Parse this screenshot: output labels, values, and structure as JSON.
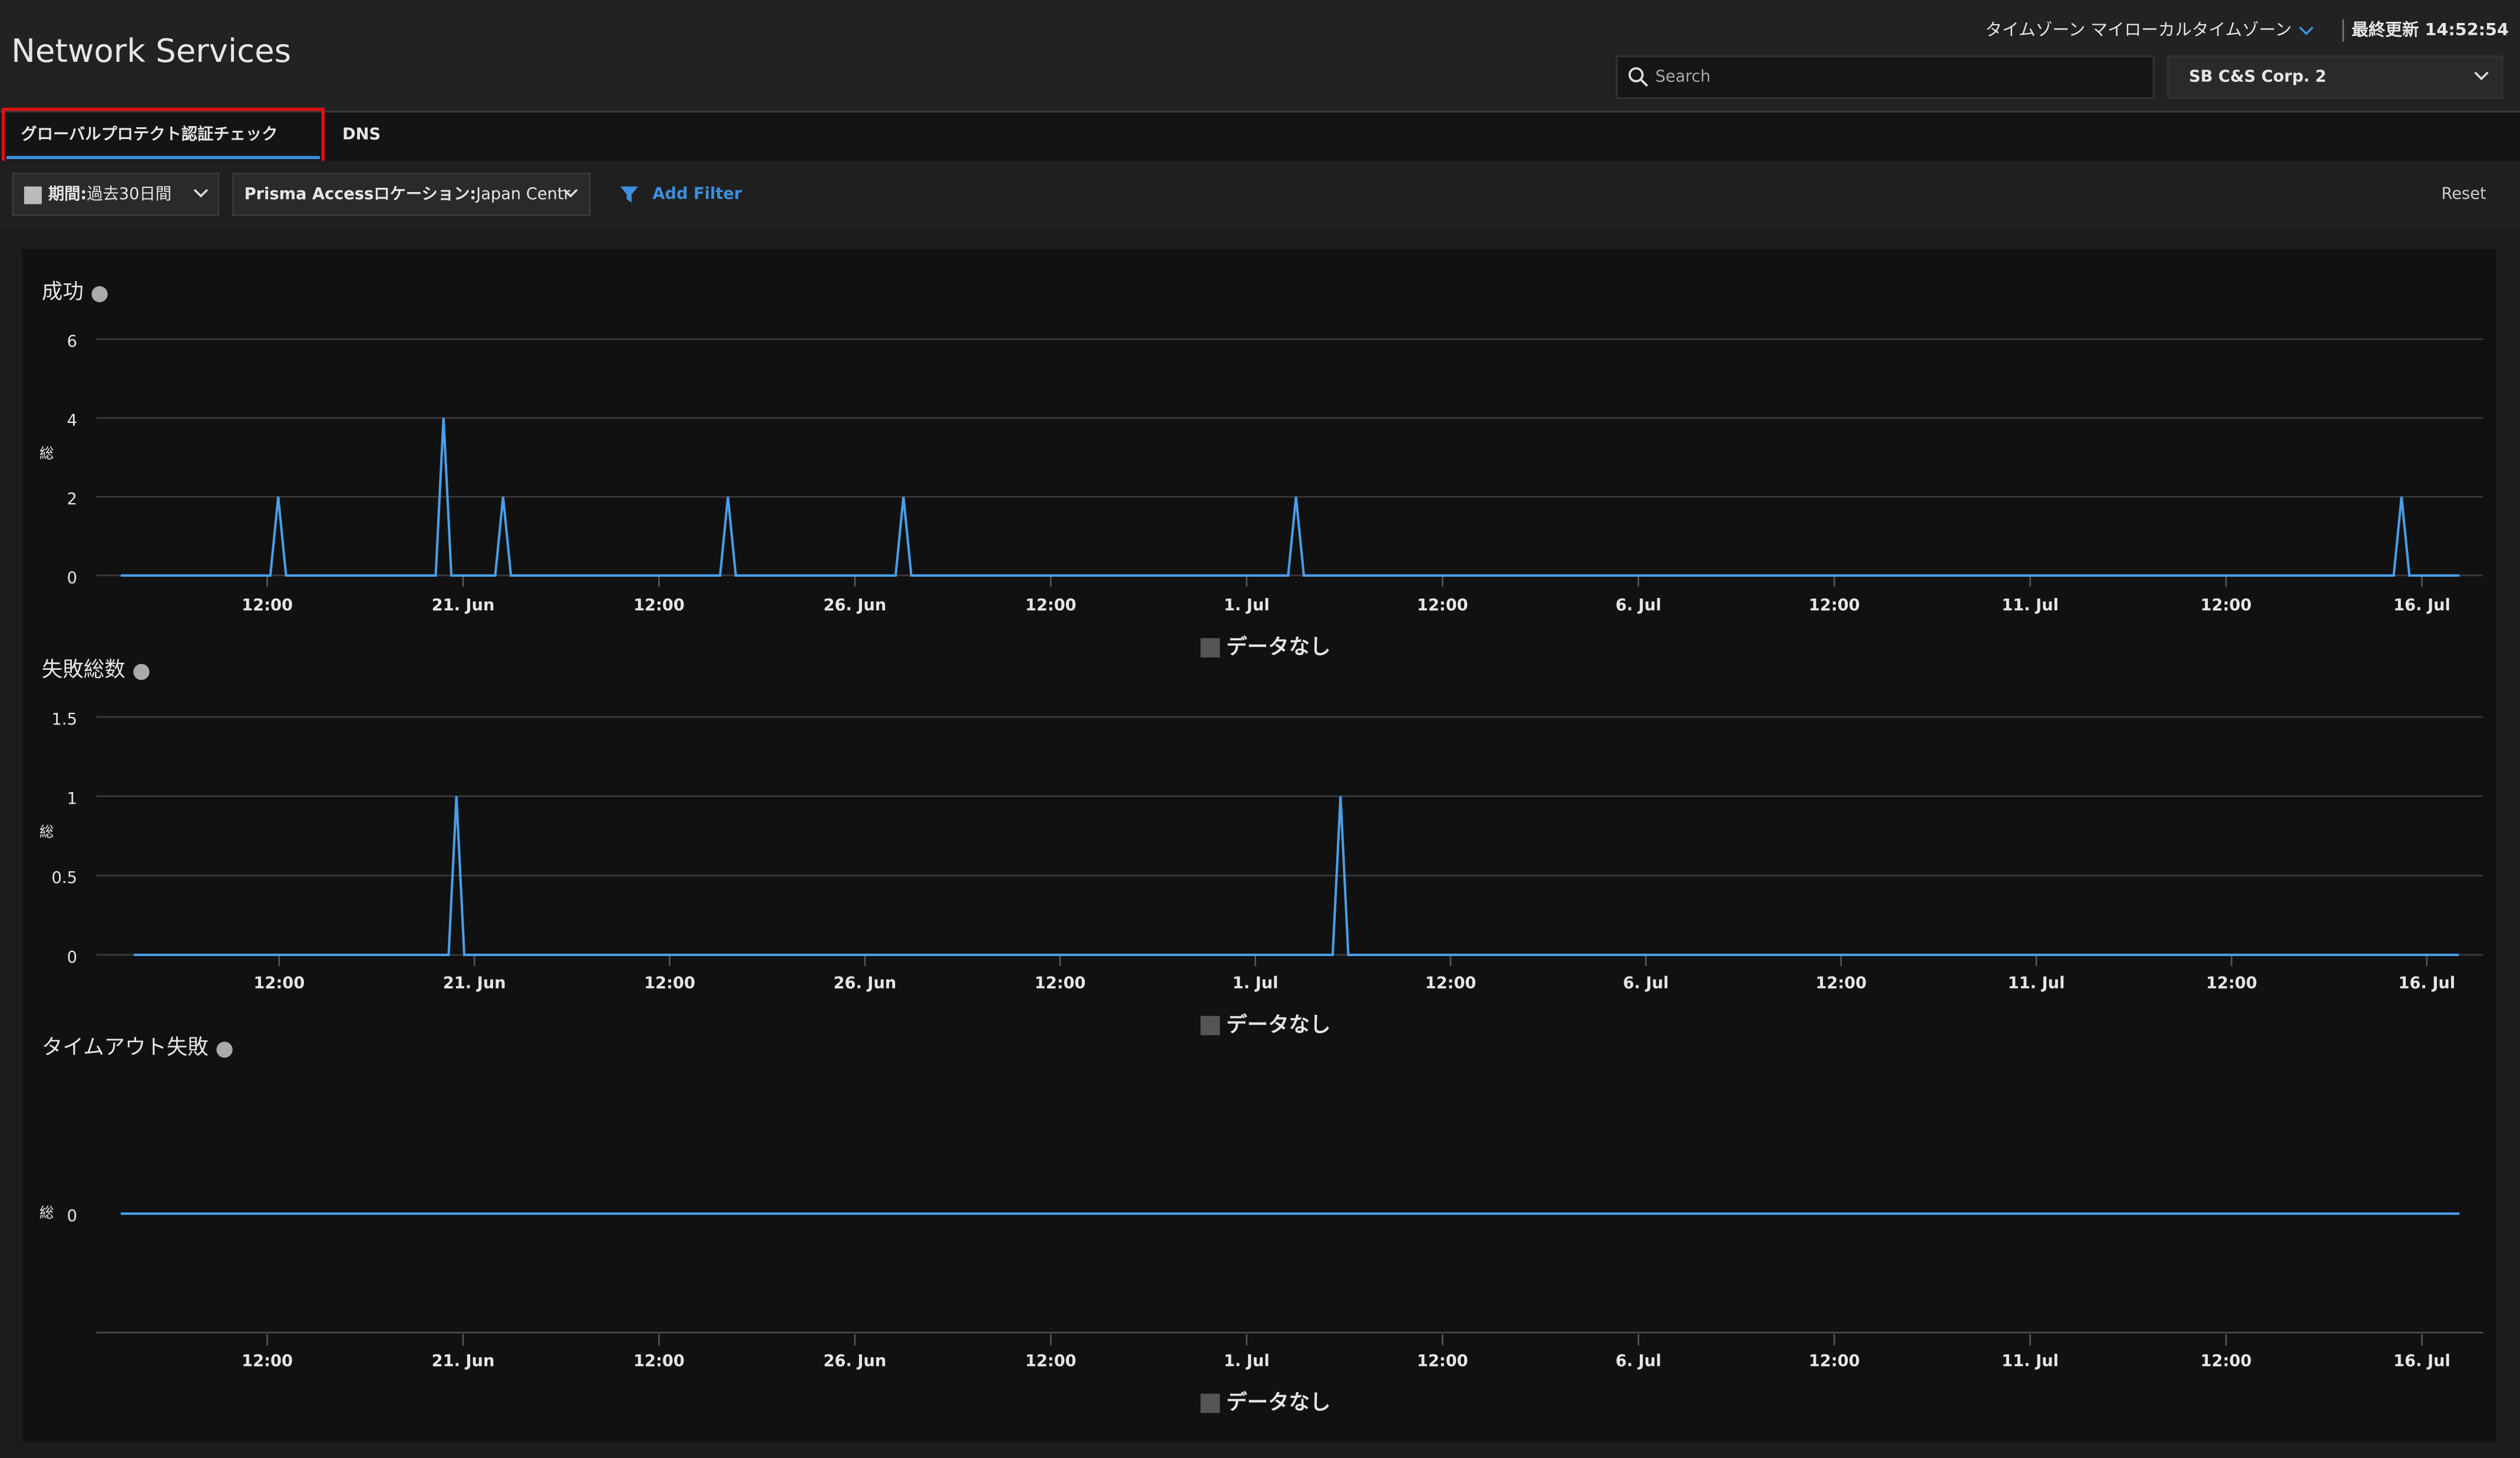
{
  "header": {
    "title": "Network Services",
    "timezone": "タイムゾーン マイローカルタイムゾーン",
    "last_updated": "最終更新 14:52:54",
    "search_placeholder": "Search",
    "tenant": "SB C&S Corp. 2"
  },
  "tabs": [
    "グローバルプロテクト認証チェック",
    "DNS"
  ],
  "filters": {
    "period_label": "期間:",
    "period_value": "過去30日間",
    "location_label": "Prisma Accessロケーション:",
    "location_value": "Japan Centr",
    "add_filter": "Add Filter",
    "reset": "Reset"
  },
  "chart_data": [
    {
      "type": "line",
      "title": "成功",
      "y_label": "総",
      "grid": true,
      "x": [
        16.63,
        18.54,
        18.64,
        18.74,
        20.65,
        20.75,
        20.85,
        21.41,
        21.51,
        21.61,
        24.28,
        24.38,
        24.48,
        26.52,
        26.62,
        26.72,
        31.53,
        31.63,
        31.73,
        45.64,
        45.74,
        45.84,
        46.48
      ],
      "series": [
        {
          "name": "データなし",
          "color": "#4a9ee8",
          "values": [
            0,
            0,
            2,
            0,
            0,
            4,
            0,
            0,
            2,
            0,
            0,
            2,
            0,
            0,
            2,
            0,
            0,
            2,
            0,
            0,
            2,
            0,
            0
          ]
        }
      ],
      "xlim": [
        16.32,
        46.78
      ],
      "ylim": [
        0,
        6
      ],
      "yticks": [
        0,
        2,
        4,
        6
      ],
      "xticks": [
        {
          "value": 18.5,
          "label": "12:00"
        },
        {
          "value": 21,
          "label": "21. Jun"
        },
        {
          "value": 23.5,
          "label": "12:00"
        },
        {
          "value": 26,
          "label": "26. Jun"
        },
        {
          "value": 28.5,
          "label": "12:00"
        },
        {
          "value": 31,
          "label": "1. Jul"
        },
        {
          "value": 33.5,
          "label": "12:00"
        },
        {
          "value": 36,
          "label": "6. Jul"
        },
        {
          "value": 38.5,
          "label": "12:00"
        },
        {
          "value": 41,
          "label": "11. Jul"
        },
        {
          "value": 43.5,
          "label": "12:00"
        },
        {
          "value": 46,
          "label": "16. Jul"
        }
      ]
    },
    {
      "type": "line",
      "title": "失敗総数",
      "y_label": "総",
      "grid": true,
      "x": [
        16.64,
        20.67,
        20.77,
        20.87,
        31.99,
        32.09,
        32.19,
        46.41
      ],
      "series": [
        {
          "name": "データなし",
          "color": "#4a9ee8",
          "values": [
            0,
            0,
            1,
            0,
            0,
            1,
            0,
            0
          ]
        }
      ],
      "xlim": [
        16.16,
        46.72
      ],
      "ylim": [
        0,
        1.5
      ],
      "yticks": [
        0,
        0.5,
        1,
        1.5
      ],
      "xticks": [
        {
          "value": 18.5,
          "label": "12:00"
        },
        {
          "value": 21,
          "label": "21. Jun"
        },
        {
          "value": 23.5,
          "label": "12:00"
        },
        {
          "value": 26,
          "label": "26. Jun"
        },
        {
          "value": 28.5,
          "label": "12:00"
        },
        {
          "value": 31,
          "label": "1. Jul"
        },
        {
          "value": 33.5,
          "label": "12:00"
        },
        {
          "value": 36,
          "label": "6. Jul"
        },
        {
          "value": 38.5,
          "label": "12:00"
        },
        {
          "value": 41,
          "label": "11. Jul"
        },
        {
          "value": 43.5,
          "label": "12:00"
        },
        {
          "value": 46,
          "label": "16. Jul"
        }
      ]
    },
    {
      "type": "line",
      "title": "タイムアウト失敗",
      "y_label": "総",
      "grid": false,
      "x": [
        16.63,
        46.48
      ],
      "series": [
        {
          "name": "データなし",
          "color": "#4a9ee8",
          "values": [
            0,
            0
          ]
        }
      ],
      "xlim": [
        16.32,
        46.78
      ],
      "ylim": [
        -1,
        1
      ],
      "yticks": [
        0
      ],
      "xticks": [
        {
          "value": 18.5,
          "label": "12:00"
        },
        {
          "value": 21,
          "label": "21. Jun"
        },
        {
          "value": 23.5,
          "label": "12:00"
        },
        {
          "value": 26,
          "label": "26. Jun"
        },
        {
          "value": 28.5,
          "label": "12:00"
        },
        {
          "value": 31,
          "label": "1. Jul"
        },
        {
          "value": 33.5,
          "label": "12:00"
        },
        {
          "value": 36,
          "label": "6. Jul"
        },
        {
          "value": 38.5,
          "label": "12:00"
        },
        {
          "value": 41,
          "label": "11. Jul"
        },
        {
          "value": 43.5,
          "label": "12:00"
        },
        {
          "value": 46,
          "label": "16. Jul"
        }
      ]
    }
  ]
}
